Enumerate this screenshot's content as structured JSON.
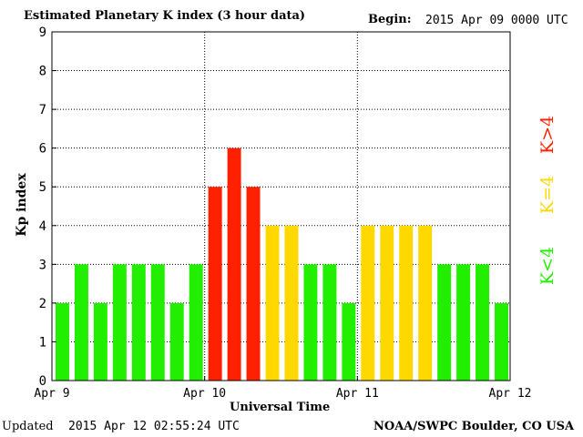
{
  "header": {
    "title": "Estimated Planetary K index (3 hour data)",
    "begin_label": "Begin:",
    "begin_value": "2015 Apr 09 0000 UTC"
  },
  "footer": {
    "updated_label": "Updated",
    "updated_value": "2015 Apr 12 02:55:24 UTC",
    "source": "NOAA/SWPC Boulder, CO USA"
  },
  "legend": {
    "high": {
      "label": "K>4",
      "color": "#ff2000"
    },
    "mid": {
      "label": "K=4",
      "color": "#ffd800"
    },
    "low": {
      "label": "K<4",
      "color": "#22ee00"
    }
  },
  "chart_data": {
    "type": "bar",
    "title": "Estimated Planetary K index (3 hour data)",
    "xlabel": "Universal Time",
    "ylabel": "Kp index",
    "ylim": [
      0,
      9
    ],
    "yticks": [
      0,
      1,
      2,
      3,
      4,
      5,
      6,
      7,
      8,
      9
    ],
    "x_tick_labels": [
      "Apr 9",
      "Apr 10",
      "Apr 11",
      "Apr 12"
    ],
    "grid": true,
    "legend_placement": "right",
    "values": [
      2,
      3,
      2,
      3,
      3,
      3,
      2,
      3,
      5,
      6,
      5,
      4,
      4,
      3,
      3,
      2,
      4,
      4,
      4,
      4,
      3,
      3,
      3,
      2
    ],
    "colors": {
      "below4": "#22ee00",
      "equal4": "#ffd800",
      "above4": "#ff2000"
    }
  }
}
